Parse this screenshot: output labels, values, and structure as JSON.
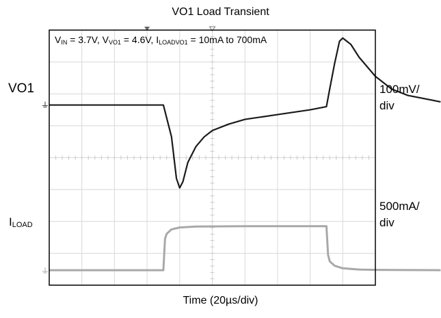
{
  "chart_data": {
    "type": "line",
    "title": "VO1 Load Transient",
    "conditions": {
      "vin_label": "V",
      "vin_sub": "IN",
      "vin_value": " = 3.7V, ",
      "vvo1_label": "V",
      "vvo1_sub": "VO1",
      "vvo1_value": " = 4.6V, ",
      "iload_label": "I",
      "iload_sub": "LOADVO1",
      "iload_value": " = 10mA to 700mA"
    },
    "xlabel": "Time (20µs/div)",
    "grid": true,
    "x_divisions": 10,
    "y_divisions": 8,
    "channels": [
      {
        "label": "VO1",
        "scale_line1": "100mV/",
        "scale_line2": "div",
        "color": "#1a1a1a"
      },
      {
        "label": "I",
        "label_sub": "LOAD",
        "scale_line1": "500mA/",
        "scale_line2": "div",
        "color": "#a8a8a8"
      }
    ],
    "series": [
      {
        "name": "VO1",
        "x": [
          0,
          20,
          40,
          60,
          70,
          75,
          78,
          80,
          82,
          85,
          90,
          95,
          100,
          110,
          120,
          140,
          160,
          170,
          172,
          175,
          178,
          180,
          185,
          190,
          200,
          210,
          220,
          240
        ],
        "y": [
          0,
          0,
          0,
          0,
          0,
          -1,
          -2.3,
          -2.6,
          -2.4,
          -1.8,
          -1.3,
          -1.0,
          -0.8,
          -0.6,
          -0.45,
          -0.3,
          -0.15,
          -0.05,
          0.5,
          1.3,
          2.0,
          2.1,
          1.9,
          1.5,
          0.9,
          0.5,
          0.3,
          0.1
        ]
      },
      {
        "name": "LOAD",
        "x": [
          0,
          20,
          40,
          60,
          70,
          71,
          72,
          75,
          80,
          90,
          120,
          150,
          169,
          170,
          171,
          172,
          175,
          180,
          190,
          200,
          220,
          240
        ],
        "y": [
          10,
          10,
          10,
          10,
          10,
          500,
          580,
          650,
          680,
          695,
          700,
          700,
          700,
          700,
          250,
          150,
          80,
          40,
          20,
          15,
          12,
          10
        ]
      }
    ]
  }
}
